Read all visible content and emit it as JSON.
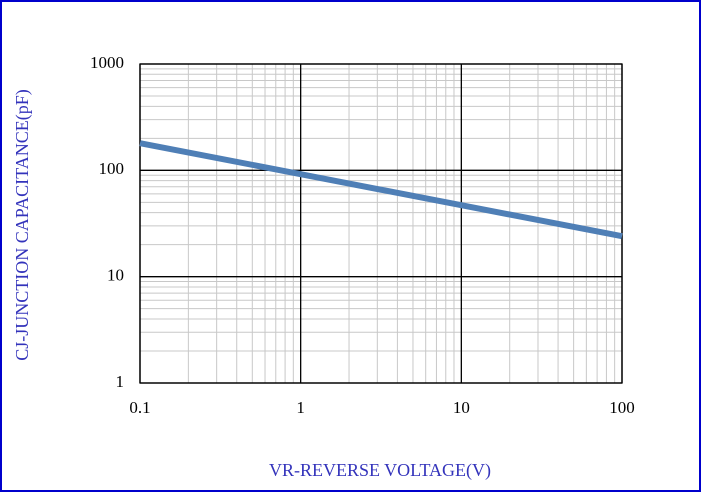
{
  "chart_data": {
    "type": "line",
    "x_label": "VR-REVERSE VOLTAGE(V)",
    "y_label": "CJ-JUNCTION CAPACITANCE(pF)",
    "x": [
      0.1,
      1,
      10,
      100
    ],
    "series": [
      {
        "color": "#4f7fb6",
        "values": [
          180,
          92,
          47,
          24
        ]
      }
    ],
    "xlim": [
      0.1,
      100
    ],
    "xticks": [
      0.1,
      1,
      10,
      100
    ],
    "ylim": [
      1,
      1000
    ],
    "yticks": [
      1,
      10,
      100,
      1000
    ],
    "xscale": "log",
    "yscale": "log",
    "grid": true
  }
}
